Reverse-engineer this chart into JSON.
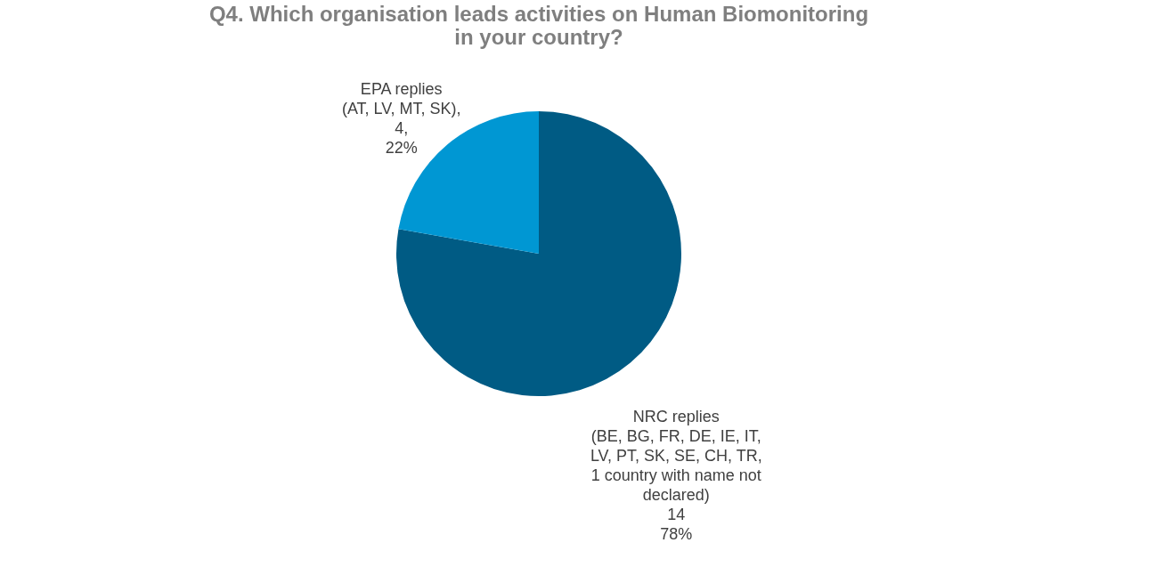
{
  "chart_data": {
    "type": "pie",
    "title": "Q4. Which organisation leads activities on Human Biomonitoring in your country?",
    "categories": [
      "NRC replies (BE, BG, FR, DE, IE, IT, LV, PT, SK, SE, CH, TR, 1 country with name not declared)",
      "EPA replies (AT, LV, MT, SK)"
    ],
    "values": [
      14,
      4
    ],
    "colors": [
      "#005b84",
      "#0097d3"
    ],
    "value_labels": [
      "14 78%",
      ", 4, 22%"
    ]
  }
}
